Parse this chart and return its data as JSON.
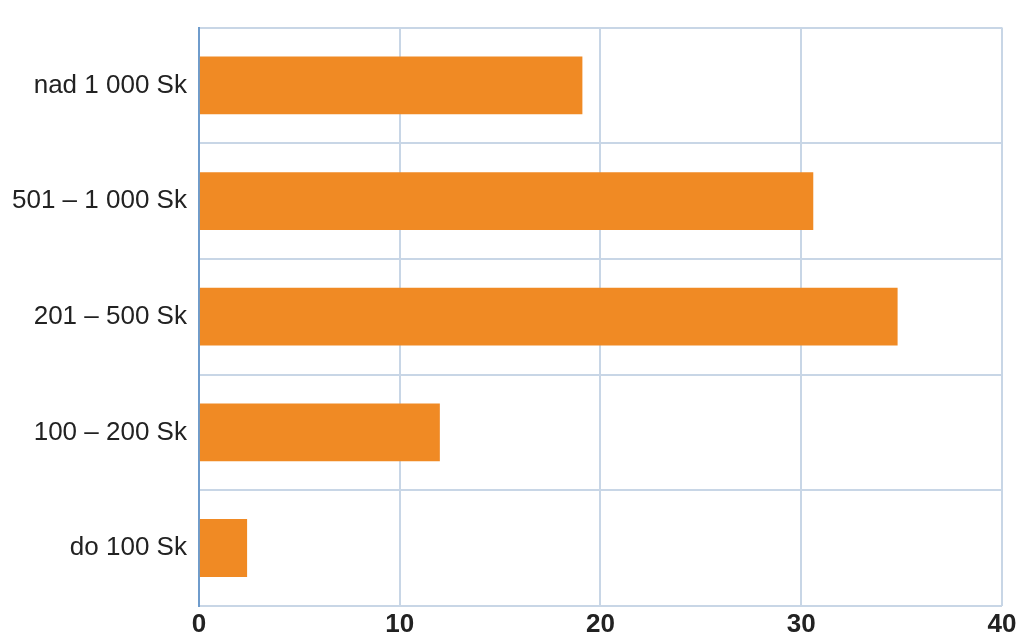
{
  "chart_data": {
    "type": "bar",
    "orientation": "horizontal",
    "categories": [
      "nad 1 000 Sk",
      "501 – 1 000 Sk",
      "201 – 500 Sk",
      "100 – 200 Sk",
      "do 100 Sk"
    ],
    "values": [
      19.1,
      30.6,
      34.8,
      12.0,
      2.4
    ],
    "color": "#f08a24",
    "xlim": [
      0,
      40
    ],
    "xticks": [
      0,
      10,
      20,
      30,
      40
    ],
    "grid": true,
    "legend": false
  }
}
